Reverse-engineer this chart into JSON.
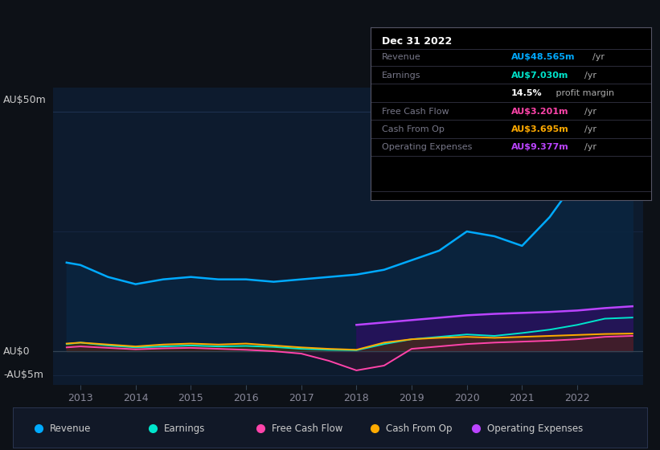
{
  "background_color": "#0d1117",
  "plot_bg_color": "#0d1b2e",
  "title": "Dec 31 2022",
  "ylim": [
    -7,
    55
  ],
  "xlim_start": 2012.5,
  "xlim_end": 2023.2,
  "years": [
    2012.75,
    2013.0,
    2013.5,
    2014.0,
    2014.5,
    2015.0,
    2015.5,
    2016.0,
    2016.5,
    2017.0,
    2017.5,
    2018.0,
    2018.5,
    2019.0,
    2019.5,
    2020.0,
    2020.5,
    2021.0,
    2021.5,
    2022.0,
    2022.5,
    2023.0
  ],
  "revenue": [
    18.5,
    18.0,
    15.5,
    14.0,
    15.0,
    15.5,
    15.0,
    15.0,
    14.5,
    15.0,
    15.5,
    16.0,
    17.0,
    19.0,
    21.0,
    25.0,
    24.0,
    22.0,
    28.0,
    36.0,
    46.0,
    48.565
  ],
  "earnings": [
    1.5,
    1.8,
    1.2,
    0.8,
    1.0,
    1.2,
    1.0,
    1.1,
    0.9,
    0.5,
    0.3,
    0.2,
    1.5,
    2.5,
    3.0,
    3.5,
    3.2,
    3.8,
    4.5,
    5.5,
    6.8,
    7.03
  ],
  "free_cash_flow": [
    0.8,
    1.0,
    0.7,
    0.4,
    0.6,
    0.7,
    0.5,
    0.3,
    0.0,
    -0.5,
    -2.0,
    -4.0,
    -3.0,
    0.5,
    1.0,
    1.5,
    1.8,
    2.0,
    2.2,
    2.5,
    3.0,
    3.201
  ],
  "cash_from_op": [
    1.6,
    1.8,
    1.4,
    1.0,
    1.4,
    1.6,
    1.4,
    1.6,
    1.2,
    0.8,
    0.5,
    0.3,
    1.8,
    2.5,
    2.8,
    3.0,
    2.8,
    3.0,
    3.2,
    3.4,
    3.6,
    3.695
  ],
  "operating_expenses": [
    null,
    null,
    null,
    null,
    null,
    null,
    null,
    null,
    null,
    null,
    null,
    5.5,
    6.0,
    6.5,
    7.0,
    7.5,
    7.8,
    8.0,
    8.2,
    8.5,
    9.0,
    9.377
  ],
  "revenue_color": "#00aaff",
  "earnings_color": "#00e5cc",
  "free_cash_flow_color": "#ff44aa",
  "cash_from_op_color": "#ffaa00",
  "operating_expenses_color": "#bb44ff",
  "revenue_fill": "#0a2540",
  "earnings_fill": "#0a3030",
  "operating_expenses_fill": "#2a1060",
  "grid_color": "#1e3050",
  "text_color": "#888899",
  "xticks": [
    2013,
    2014,
    2015,
    2016,
    2017,
    2018,
    2019,
    2020,
    2021,
    2022
  ],
  "legend_items": [
    {
      "label": "Revenue",
      "color": "#00aaff"
    },
    {
      "label": "Earnings",
      "color": "#00e5cc"
    },
    {
      "label": "Free Cash Flow",
      "color": "#ff44aa"
    },
    {
      "label": "Cash From Op",
      "color": "#ffaa00"
    },
    {
      "label": "Operating Expenses",
      "color": "#bb44ff"
    }
  ],
  "info_rows": [
    {
      "label": "Revenue",
      "value": "AU$48.565m",
      "unit": "/yr",
      "value_color": "#00aaff"
    },
    {
      "label": "Earnings",
      "value": "AU$7.030m",
      "unit": "/yr",
      "value_color": "#00e5cc"
    },
    {
      "label": "",
      "value": "14.5%",
      "unit": " profit margin",
      "value_color": "#ffffff"
    },
    {
      "label": "Free Cash Flow",
      "value": "AU$3.201m",
      "unit": "/yr",
      "value_color": "#ff44aa"
    },
    {
      "label": "Cash From Op",
      "value": "AU$3.695m",
      "unit": "/yr",
      "value_color": "#ffaa00"
    },
    {
      "label": "Operating Expenses",
      "value": "AU$9.377m",
      "unit": "/yr",
      "value_color": "#bb44ff"
    }
  ]
}
